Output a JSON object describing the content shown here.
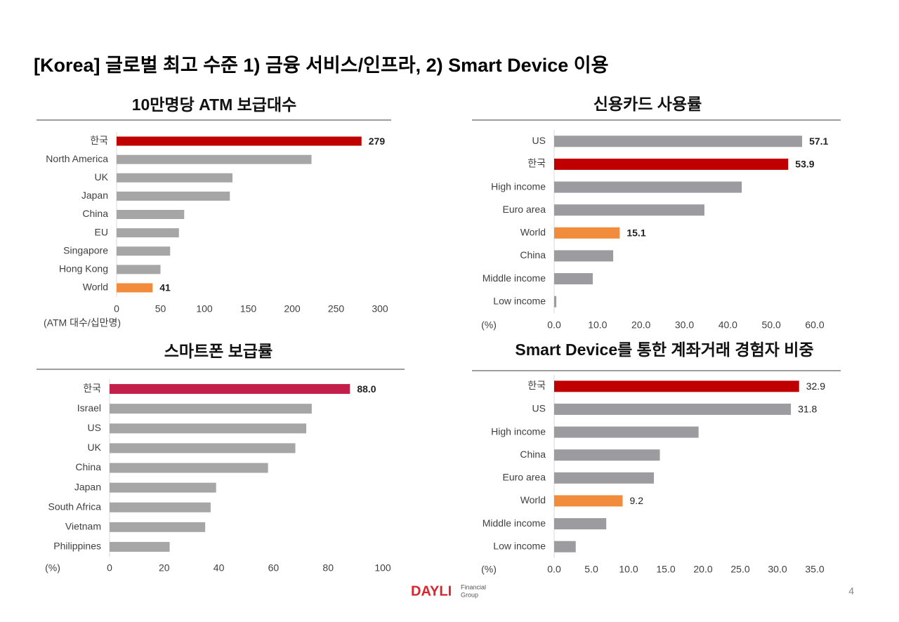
{
  "title": "[Korea] 글로벌 최고 수준 1) 금융 서비스/인프라, 2) Smart Device 이용",
  "chart_data": [
    {
      "type": "hbar",
      "title": "10만명당  ATM 보급대수",
      "x_label": "(ATM 대수/십만명)",
      "categories": [
        "한국",
        "North America",
        "UK",
        "Japan",
        "China",
        "EU",
        "Singapore",
        "Hong Kong",
        "World"
      ],
      "values": [
        279,
        222,
        132,
        129,
        77,
        71,
        61,
        50,
        41
      ],
      "value_labels": [
        "279",
        null,
        null,
        null,
        null,
        null,
        null,
        null,
        "41"
      ],
      "colors": [
        "#c00000",
        "#a6a6a6",
        "#a6a6a6",
        "#a6a6a6",
        "#a6a6a6",
        "#a6a6a6",
        "#a6a6a6",
        "#a6a6a6",
        "#f08c3c"
      ],
      "xlim": [
        0,
        300
      ],
      "xticks": [
        0,
        50,
        100,
        150,
        200,
        250,
        300
      ]
    },
    {
      "type": "hbar",
      "title": "신용카드 사용률",
      "x_label": "(%)",
      "categories": [
        "US",
        "한국",
        "High income",
        "Euro area",
        "World",
        "China",
        "Middle income",
        "Low income"
      ],
      "values": [
        57.1,
        53.9,
        43.2,
        34.6,
        15.1,
        13.6,
        8.9,
        0.5
      ],
      "value_labels": [
        "57.1",
        "53.9",
        null,
        null,
        "15.1",
        null,
        null,
        null
      ],
      "colors": [
        "#9b9ba0",
        "#c00000",
        "#9b9ba0",
        "#9b9ba0",
        "#f08c3c",
        "#9b9ba0",
        "#9b9ba0",
        "#9b9ba0"
      ],
      "xlim": [
        0,
        60
      ],
      "xticks": [
        {
          "value": 0,
          "label": "0.0"
        },
        {
          "value": 10,
          "label": "10.0"
        },
        {
          "value": 20,
          "label": "20.0"
        },
        {
          "value": 30,
          "label": "30.0"
        },
        {
          "value": 40,
          "label": "40.0"
        },
        {
          "value": 50,
          "label": "50.0"
        },
        {
          "value": 60,
          "label": "60.0"
        }
      ]
    },
    {
      "type": "hbar",
      "title": "스마트폰 보급률",
      "x_label": "(%)",
      "categories": [
        "한국",
        "Israel",
        "US",
        "UK",
        "China",
        "Japan",
        "South Africa",
        "Vietnam",
        "Philippines"
      ],
      "values": [
        88.0,
        74,
        72,
        68,
        58,
        39,
        37,
        35,
        22
      ],
      "value_labels": [
        "88.0",
        null,
        null,
        null,
        null,
        null,
        null,
        null,
        null
      ],
      "colors": [
        "#c41e4a",
        "#a6a6a6",
        "#a6a6a6",
        "#a6a6a6",
        "#a6a6a6",
        "#a6a6a6",
        "#a6a6a6",
        "#a6a6a6",
        "#a6a6a6"
      ],
      "xlim": [
        0,
        100
      ],
      "xticks": [
        0,
        20,
        40,
        60,
        80,
        100
      ]
    },
    {
      "type": "hbar",
      "title": "Smart Device를 통한 계좌거래 경험자 비중",
      "x_label": "(%)",
      "categories": [
        "한국",
        "US",
        "High income",
        "China",
        "Euro area",
        "World",
        "Middle income",
        "Low income"
      ],
      "values": [
        32.9,
        31.8,
        19.4,
        14.2,
        13.4,
        9.2,
        7.0,
        2.9
      ],
      "value_labels": [
        "32.9",
        "31.8",
        null,
        null,
        null,
        "9.2",
        null,
        null
      ],
      "colors": [
        "#c00000",
        "#9b9ba0",
        "#9b9ba0",
        "#9b9ba0",
        "#9b9ba0",
        "#f08c3c",
        "#9b9ba0",
        "#9b9ba0"
      ],
      "xlim": [
        0,
        35
      ],
      "xticks": [
        {
          "value": 0,
          "label": "0.0"
        },
        {
          "value": 5,
          "label": "5.0"
        },
        {
          "value": 10,
          "label": "10.0"
        },
        {
          "value": 15,
          "label": "15.0"
        },
        {
          "value": 20,
          "label": "20.0"
        },
        {
          "value": 25,
          "label": "25.0"
        },
        {
          "value": 30,
          "label": "30.0"
        },
        {
          "value": 35,
          "label": "35.0"
        }
      ]
    }
  ],
  "footer": {
    "logo": "DAYLI",
    "logo_sub1": "Financial",
    "logo_sub2": "Group",
    "page": "4"
  }
}
